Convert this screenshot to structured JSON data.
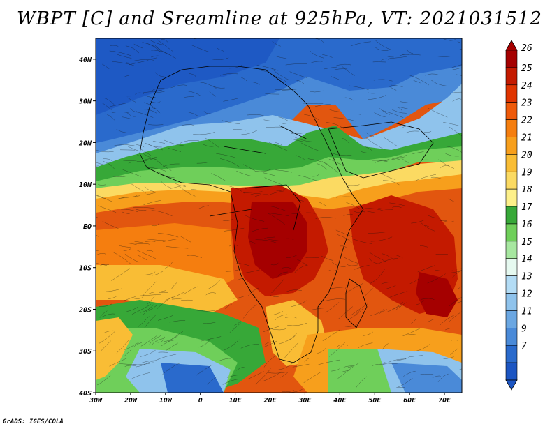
{
  "title": "WBPT [C] and Sreamline at 925hPa, VT: 2021031512",
  "credit": "GrADS: IGES/COLA",
  "map": {
    "lon_range": [
      -30,
      75
    ],
    "lat_range": [
      -40,
      45
    ],
    "lat_ticks": [
      "40N",
      "30N",
      "20N",
      "10N",
      "EQ",
      "10S",
      "20S",
      "30S",
      "40S"
    ],
    "lon_ticks": [
      "30W",
      "20W",
      "10W",
      "0",
      "10E",
      "20E",
      "30E",
      "40E",
      "50E",
      "60E",
      "70E"
    ]
  },
  "colorbar": {
    "labels": [
      "26",
      "25",
      "24",
      "23",
      "22",
      "21",
      "20",
      "19",
      "18",
      "17",
      "16",
      "15",
      "14",
      "13",
      "12",
      "11",
      "9",
      "7"
    ],
    "colors": [
      "#a50000",
      "#c41a00",
      "#e03400",
      "#ef5a0a",
      "#f57e0f",
      "#f79f1c",
      "#f9bd35",
      "#fbda62",
      "#fdf08a",
      "#37a838",
      "#6fcf5a",
      "#a7e7a0",
      "#e6f9f0",
      "#b3dcf5",
      "#8fc3ec",
      "#6ba7e2",
      "#4a8ad8",
      "#2a6acc",
      "#1c55c2"
    ]
  }
}
